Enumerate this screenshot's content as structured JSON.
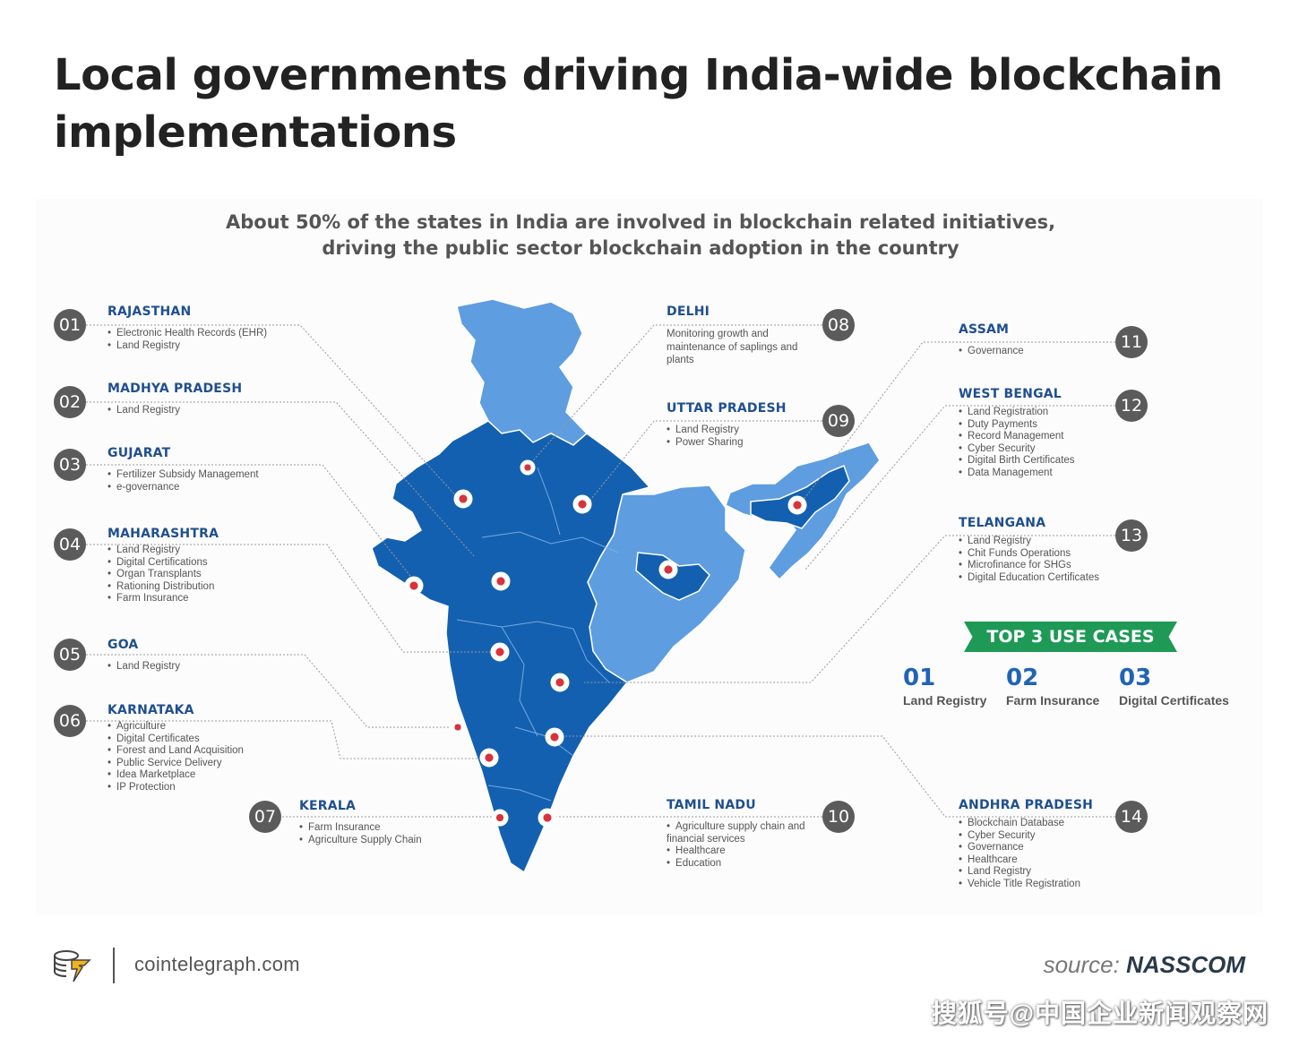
{
  "title": "Local governments driving India-wide blockchain implementations",
  "subtitle_line1": "About 50% of the states in India are involved in blockchain related initiatives,",
  "subtitle_line2": "driving the public sector blockchain adoption in the country",
  "colors": {
    "state_dark": "#1460b0",
    "state_light": "#5e9de0",
    "badge": "#5b5b5b",
    "banner": "#1e9a56",
    "state_name": "#1f4f8f"
  },
  "states": [
    {
      "num": "01",
      "name": "RAJASTHAN",
      "uses": [
        "Electronic Health Records (EHR)",
        "Land Registry"
      ]
    },
    {
      "num": "02",
      "name": "MADHYA PRADESH",
      "uses": [
        "Land Registry"
      ]
    },
    {
      "num": "03",
      "name": "GUJARAT",
      "uses": [
        "Fertilizer Subsidy Management",
        "e-governance"
      ]
    },
    {
      "num": "04",
      "name": "MAHARASHTRA",
      "uses": [
        "Land Registry",
        "Digital Certifications",
        "Organ Transplants",
        "Rationing Distribution",
        "Farm Insurance"
      ]
    },
    {
      "num": "05",
      "name": "GOA",
      "uses": [
        "Land Registry"
      ]
    },
    {
      "num": "06",
      "name": "KARNATAKA",
      "uses": [
        "Agriculture",
        "Digital Certificates",
        "Forest and Land Acquisition",
        "Public Service Delivery",
        "Idea Marketplace",
        "IP Protection"
      ]
    },
    {
      "num": "07",
      "name": "KERALA",
      "uses": [
        "Farm Insurance",
        "Agriculture Supply Chain"
      ]
    },
    {
      "num": "08",
      "name": "DELHI",
      "text": "Monitoring growth and maintenance of saplings and plants"
    },
    {
      "num": "09",
      "name": "UTTAR PRADESH",
      "uses": [
        "Land Registry",
        "Power Sharing"
      ]
    },
    {
      "num": "10",
      "name": "TAMIL NADU",
      "uses": [
        "Agriculture supply chain and financial services",
        "Healthcare",
        "Education"
      ]
    },
    {
      "num": "11",
      "name": "ASSAM",
      "uses": [
        "Governance"
      ]
    },
    {
      "num": "12",
      "name": "WEST BENGAL",
      "uses": [
        "Land Registration",
        "Duty Payments",
        "Record Management",
        "Cyber Security",
        "Digital Birth Certificates",
        "Data Management"
      ]
    },
    {
      "num": "13",
      "name": "TELANGANA",
      "uses": [
        "Land Registry",
        "Chit Funds Operations",
        "Microfinance for SHGs",
        "Digital Education Certificates"
      ]
    },
    {
      "num": "14",
      "name": "ANDHRA PRADESH",
      "uses": [
        "Blockchain Database",
        "Cyber Security",
        "Governance",
        "Healthcare",
        "Land Registry",
        "Vehicle Title Registration"
      ]
    }
  ],
  "top3": {
    "banner": "TOP 3 USE CASES",
    "items": [
      {
        "num": "01",
        "label": "Land Registry"
      },
      {
        "num": "02",
        "label": "Farm Insurance"
      },
      {
        "num": "03",
        "label": "Digital Certificates"
      }
    ]
  },
  "footer": {
    "site": "cointelegraph.com",
    "source_prefix": "source:",
    "source_name": "NASSCOM",
    "watermark": "搜狐号@中国企业新闻观察网"
  }
}
